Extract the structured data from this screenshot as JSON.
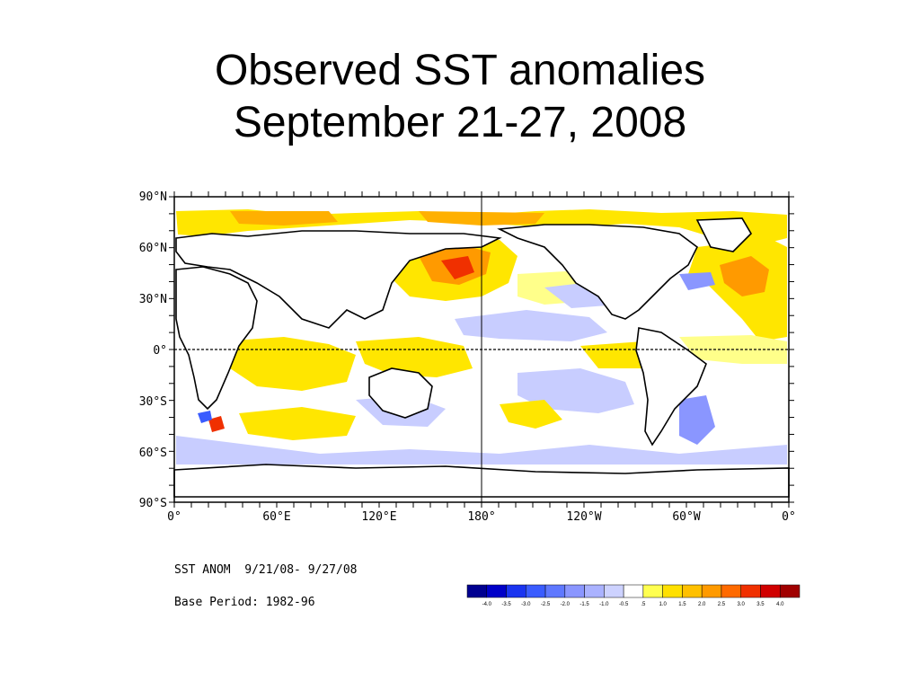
{
  "slide": {
    "title_line1": "Observed SST anomalies",
    "title_line2": "September 21-27, 2008"
  },
  "map": {
    "lat_labels": [
      "90°N",
      "60°N",
      "30°N",
      "0°",
      "30°S",
      "60°S",
      "90°S"
    ],
    "lon_labels": [
      "0°",
      "60°E",
      "120°E",
      "180°",
      "120°W",
      "60°W",
      "0°"
    ],
    "caption_line1": "SST ANOM  9/21/08- 9/27/08",
    "caption_line2": "Base Period: 1982-96",
    "colorbar": {
      "labels": [
        "-4.0",
        "-3.5",
        "-3.0",
        "-2.5",
        "-2.0",
        "-1.5",
        "-1.0",
        "-0.5",
        ".5",
        "1.0",
        "1.5",
        "2.0",
        "2.5",
        "3.0",
        "3.5",
        "4.0"
      ],
      "colors": [
        "#000090",
        "#0000c8",
        "#1a34f0",
        "#3a5cff",
        "#5f78ff",
        "#8a96ff",
        "#aab2ff",
        "#cdd2ff",
        "#ffffff",
        "#ffff50",
        "#ffe000",
        "#ffc000",
        "#ff9a00",
        "#ff6a00",
        "#f03000",
        "#d00000",
        "#a00000"
      ]
    },
    "anomaly_colors": {
      "light_yellow": "#ffff8a",
      "yellow": "#ffe600",
      "orange": "#ffb000",
      "dark_orange": "#ff7a00",
      "red": "#f03000",
      "light_blue": "#c8cdff",
      "blue": "#8a96ff",
      "dark_blue": "#3a5cff"
    }
  }
}
